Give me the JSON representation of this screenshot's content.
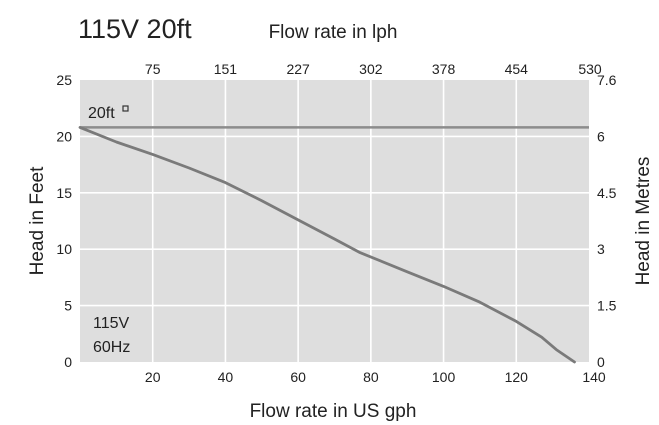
{
  "chart_data": {
    "type": "line",
    "title": "115V 20ft",
    "xlabel": "Flow rate in US gph",
    "ylabel": "Head in Feet",
    "x2label": "Flow rate in lph",
    "y2label": "Head in Metres",
    "xlim": [
      0,
      140
    ],
    "ylim": [
      0,
      25
    ],
    "xticks": [
      20,
      40,
      60,
      80,
      100,
      120,
      140
    ],
    "yticks": [
      0,
      5,
      10,
      15,
      20,
      25
    ],
    "x2ticks": [
      "75",
      "151",
      "227",
      "302",
      "378",
      "454",
      "530"
    ],
    "y2ticks": [
      "0",
      "1.5",
      "3",
      "4.5",
      "6",
      "7.6"
    ],
    "grid": true,
    "annotations": {
      "reference_label": "20ft",
      "reference_value": 20.8,
      "voltage_label": "115V",
      "frequency_label": "60Hz"
    },
    "series": [
      {
        "x": [
          0,
          10,
          20,
          30,
          40,
          50,
          60,
          70,
          77,
          90,
          100,
          110,
          120,
          127,
          131,
          136
        ],
        "y": [
          20.8,
          19.5,
          18.4,
          17.2,
          15.9,
          14.3,
          12.6,
          10.9,
          9.7,
          8.0,
          6.7,
          5.3,
          3.6,
          2.2,
          1.1,
          0
        ]
      }
    ]
  },
  "colors": {
    "plot_bg": "#dedede",
    "grid": "#ffffff",
    "curve": "#7a7a7a",
    "reference_line": "#8c8c8c",
    "text": "#222222"
  }
}
